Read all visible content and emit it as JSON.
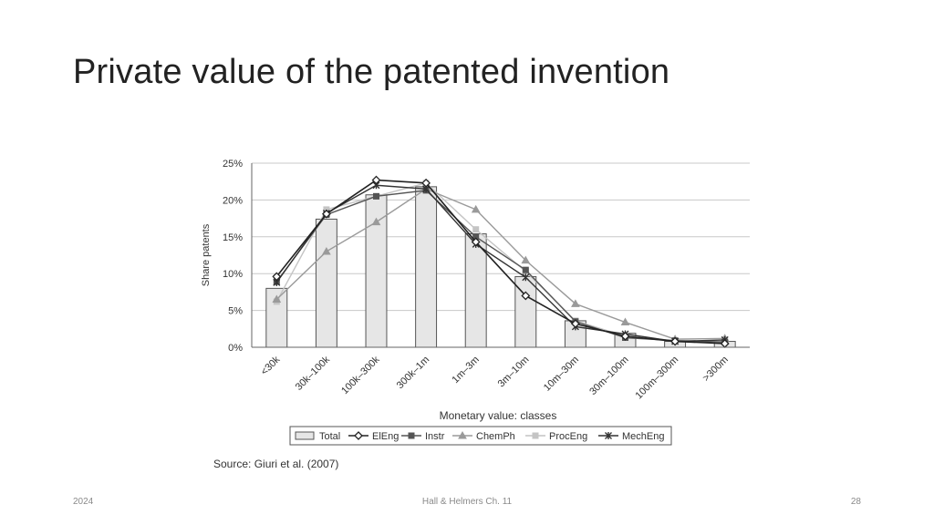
{
  "slide": {
    "title": "Private value of the patented invention",
    "footer_left": "2024",
    "footer_center": "Hall & Helmers Ch. 11",
    "footer_right": "28"
  },
  "chart_data": {
    "type": "bar",
    "title": "",
    "xlabel": "Monetary value: classes",
    "ylabel": "Share patents",
    "ylim": [
      0,
      25
    ],
    "yticks": [
      "0%",
      "5%",
      "10%",
      "15%",
      "20%",
      "25%"
    ],
    "grid": true,
    "legend_position": "bottom",
    "source": "Source: Giuri et al. (2007)",
    "categories": [
      "<30k",
      "30k–100k",
      "100k–300k",
      "300k–1m",
      "1m–3m",
      "3m–10m",
      "10m–30m",
      "30m–100m",
      "100m–300m",
      ">300m"
    ],
    "bars": {
      "name": "Total",
      "values": [
        8,
        17.4,
        20.7,
        21.8,
        15.4,
        9.6,
        3.6,
        1.9,
        0.8,
        0.8
      ]
    },
    "series": [
      {
        "name": "ElEng",
        "marker": "diamond",
        "color": "#222222",
        "values": [
          9.6,
          18.1,
          22.7,
          22.3,
          14.3,
          7.0,
          3.2,
          1.5,
          0.8,
          0.5
        ]
      },
      {
        "name": "Instr",
        "marker": "square",
        "color": "#555555",
        "values": [
          8.9,
          18.0,
          20.5,
          21.3,
          15.0,
          10.5,
          3.5,
          1.3,
          0.9,
          0.7
        ]
      },
      {
        "name": "ChemPh",
        "marker": "triangle",
        "color": "#9a9a9a",
        "values": [
          6.5,
          13.0,
          17.0,
          21.5,
          18.7,
          11.8,
          5.9,
          3.4,
          1.1,
          1.2
        ]
      },
      {
        "name": "ProcEng",
        "marker": "square",
        "color": "#c4c4c4",
        "values": [
          6.2,
          18.7,
          20.5,
          22.3,
          16.0,
          10.3,
          3.6,
          1.5,
          0.9,
          0.8
        ]
      },
      {
        "name": "MechEng",
        "marker": "star",
        "color": "#333333",
        "values": [
          8.8,
          18.2,
          22.0,
          21.5,
          14.0,
          9.5,
          2.8,
          1.8,
          0.8,
          1.0
        ]
      }
    ]
  }
}
